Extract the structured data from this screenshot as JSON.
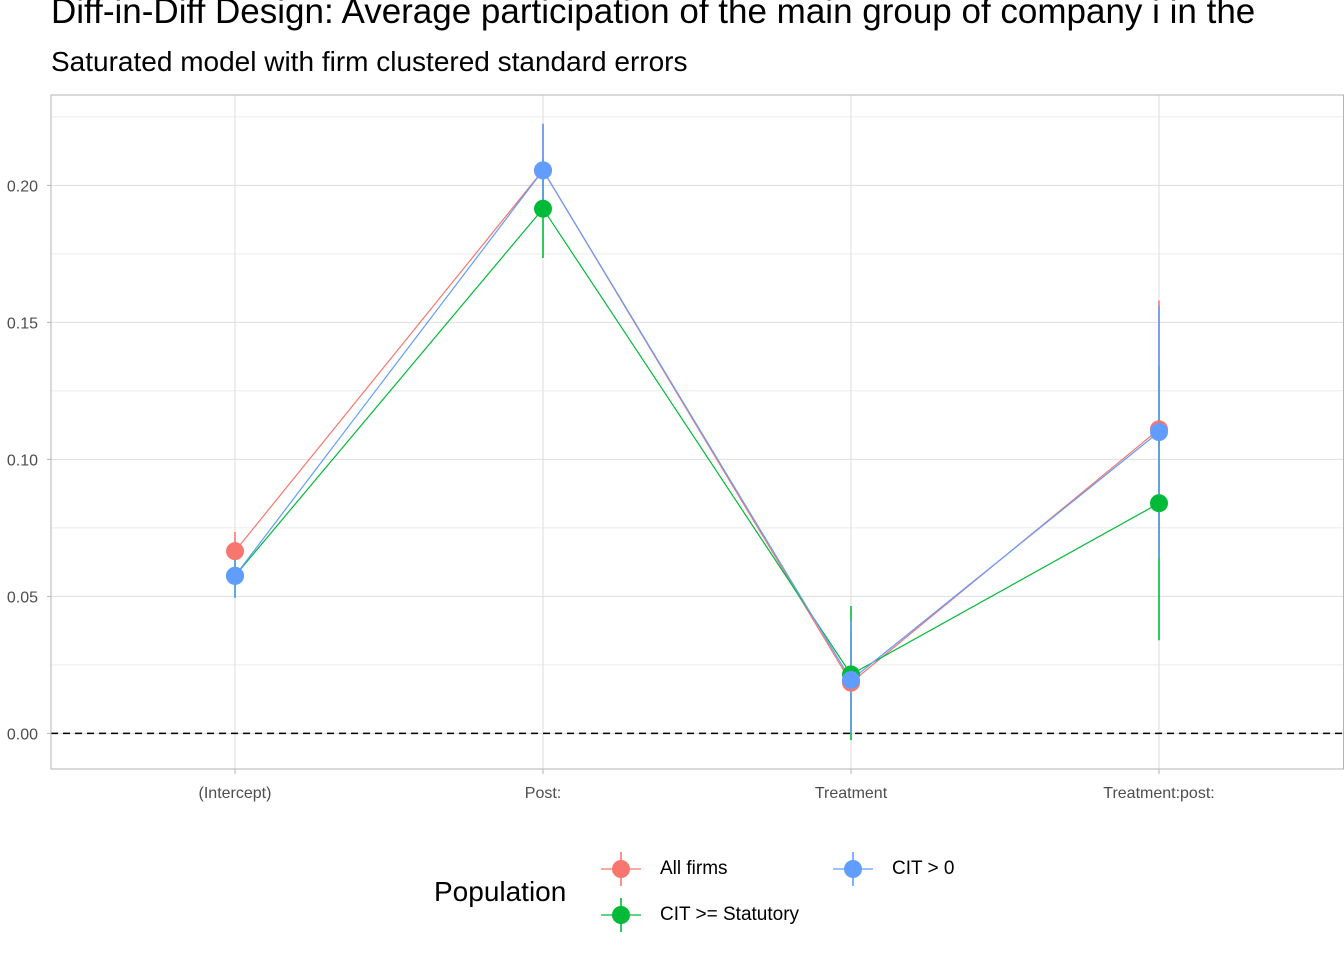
{
  "chart_data": {
    "type": "scatter",
    "title": "Diff-in-Diff Design: Average participation of the main group of company i in the",
    "subtitle": "Saturated model with firm clustered standard errors",
    "xlabel": "",
    "ylabel": "",
    "categories": [
      "(Intercept)",
      "Post:",
      "Treatment",
      "Treatment:post:"
    ],
    "ylim": [
      -0.013,
      0.233
    ],
    "yticks": [
      0.0,
      0.05,
      0.1,
      0.15,
      0.2
    ],
    "ytick_labels": [
      "0.00",
      "0.05",
      "0.10",
      "0.15",
      "0.20"
    ],
    "reference_line": {
      "y": 0.0,
      "style": "dashed",
      "color": "#000000"
    },
    "grid": true,
    "legend": {
      "title": "Population",
      "position": "bottom"
    },
    "series": [
      {
        "name": "All firms",
        "color": "#F8766D",
        "values": [
          0.0665,
          0.2055,
          0.0185,
          0.111
        ],
        "lower": [
          0.0595,
          0.1885,
          0.0,
          0.064
        ],
        "upper": [
          0.0735,
          0.2225,
          0.037,
          0.158
        ]
      },
      {
        "name": "CIT >= Statutory",
        "color": "#00BA38",
        "values": [
          0.0575,
          0.1915,
          0.0215,
          0.084
        ],
        "lower": [
          0.0495,
          0.1735,
          -0.0025,
          0.034
        ],
        "upper": [
          0.0655,
          0.2095,
          0.0465,
          0.134
        ]
      },
      {
        "name": "CIT > 0",
        "color": "#619CFF",
        "values": [
          0.0575,
          0.2055,
          0.0195,
          0.11
        ],
        "lower": [
          0.0495,
          0.1895,
          0.0,
          0.064
        ],
        "upper": [
          0.0655,
          0.2225,
          0.041,
          0.156
        ]
      }
    ]
  }
}
